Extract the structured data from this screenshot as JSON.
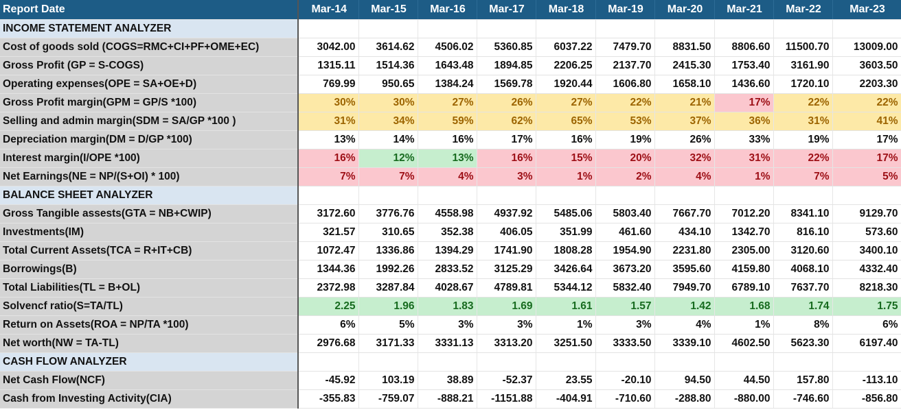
{
  "header": {
    "label": "Report Date",
    "years": [
      "Mar-14",
      "Mar-15",
      "Mar-16",
      "Mar-17",
      "Mar-18",
      "Mar-19",
      "Mar-20",
      "Mar-21",
      "Mar-22",
      "Mar-23"
    ]
  },
  "rows": [
    {
      "type": "section",
      "label": "INCOME STATEMENT ANALYZER"
    },
    {
      "label": "Cost of goods sold (COGS=RMC+CI+PF+OME+EC)",
      "values": [
        "3042.00",
        "3614.62",
        "4506.02",
        "5360.85",
        "6037.22",
        "7479.70",
        "8831.50",
        "8806.60",
        "11500.70",
        "13009.00"
      ],
      "styles": [
        "",
        "",
        "",
        "",
        "",
        "",
        "",
        "",
        "",
        ""
      ]
    },
    {
      "label": "Gross Profit (GP = S-COGS)",
      "values": [
        "1315.11",
        "1514.36",
        "1643.48",
        "1894.85",
        "2206.25",
        "2137.70",
        "2415.30",
        "1753.40",
        "3161.90",
        "3603.50"
      ],
      "styles": [
        "",
        "",
        "",
        "",
        "",
        "",
        "",
        "",
        "",
        ""
      ]
    },
    {
      "label": "Operating expenses(OPE = SA+OE+D)",
      "values": [
        "769.99",
        "950.65",
        "1384.24",
        "1569.78",
        "1920.44",
        "1606.80",
        "1658.10",
        "1436.60",
        "1720.10",
        "2203.30"
      ],
      "styles": [
        "",
        "",
        "",
        "",
        "",
        "",
        "",
        "",
        "",
        ""
      ]
    },
    {
      "label": "Gross Profit margin(GPM = GP/S *100)",
      "values": [
        "30%",
        "30%",
        "27%",
        "26%",
        "27%",
        "22%",
        "21%",
        "17%",
        "22%",
        "22%"
      ],
      "styles": [
        "yellow",
        "yellow",
        "yellow",
        "yellow",
        "yellow",
        "yellow",
        "yellow",
        "red",
        "yellow",
        "yellow"
      ]
    },
    {
      "label": "Selling and admin margin(SDM = SA/GP *100 )",
      "values": [
        "31%",
        "34%",
        "59%",
        "62%",
        "65%",
        "53%",
        "37%",
        "36%",
        "31%",
        "41%"
      ],
      "styles": [
        "yellow",
        "yellow",
        "yellow",
        "yellow",
        "yellow",
        "yellow",
        "yellow",
        "yellow",
        "yellow",
        "yellow"
      ]
    },
    {
      "label": "Depreciation margin(DM = D/GP *100)",
      "values": [
        "13%",
        "14%",
        "16%",
        "17%",
        "16%",
        "19%",
        "26%",
        "33%",
        "19%",
        "17%"
      ],
      "styles": [
        "",
        "",
        "",
        "",
        "",
        "",
        "",
        "",
        "",
        ""
      ]
    },
    {
      "label": "Interest  margin(I/OPE *100)",
      "values": [
        "16%",
        "12%",
        "13%",
        "16%",
        "15%",
        "20%",
        "32%",
        "31%",
        "22%",
        "17%"
      ],
      "styles": [
        "red",
        "green",
        "green",
        "red",
        "red",
        "red",
        "red",
        "red",
        "red",
        "red"
      ]
    },
    {
      "label": "Net Earnings(NE = NP/(S+OI) * 100)",
      "values": [
        "7%",
        "7%",
        "4%",
        "3%",
        "1%",
        "2%",
        "4%",
        "1%",
        "7%",
        "5%"
      ],
      "styles": [
        "red",
        "red",
        "red",
        "red",
        "red",
        "red",
        "red",
        "red",
        "red",
        "red"
      ]
    },
    {
      "type": "section",
      "label": "BALANCE SHEET ANALYZER"
    },
    {
      "label": " Gross Tangible assests(GTA = NB+CWIP)",
      "values": [
        "3172.60",
        "3776.76",
        "4558.98",
        "4937.92",
        "5485.06",
        "5803.40",
        "7667.70",
        "7012.20",
        "8341.10",
        "9129.70"
      ],
      "styles": [
        "",
        "",
        "",
        "",
        "",
        "",
        "",
        "",
        "",
        ""
      ]
    },
    {
      "label": "Investments(IM)",
      "values": [
        "321.57",
        "310.65",
        "352.38",
        "406.05",
        "351.99",
        "461.60",
        "434.10",
        "1342.70",
        "816.10",
        "573.60"
      ],
      "styles": [
        "",
        "",
        "",
        "",
        "",
        "",
        "",
        "",
        "",
        ""
      ]
    },
    {
      "label": "Total Current Assets(TCA = R+IT+CB)",
      "values": [
        "1072.47",
        "1336.86",
        "1394.29",
        "1741.90",
        "1808.28",
        "1954.90",
        "2231.80",
        "2305.00",
        "3120.60",
        "3400.10"
      ],
      "styles": [
        "",
        "",
        "",
        "",
        "",
        "",
        "",
        "",
        "",
        ""
      ]
    },
    {
      "label": "Borrowings(B)",
      "values": [
        "1344.36",
        "1992.26",
        "2833.52",
        "3125.29",
        "3426.64",
        "3673.20",
        "3595.60",
        "4159.80",
        "4068.10",
        "4332.40"
      ],
      "styles": [
        "",
        "",
        "",
        "",
        "",
        "",
        "",
        "",
        "",
        ""
      ]
    },
    {
      "label": "Total Liabilities(TL = B+OL)",
      "values": [
        "2372.98",
        "3287.84",
        "4028.67",
        "4789.81",
        "5344.12",
        "5832.40",
        "7949.70",
        "6789.10",
        "7637.70",
        "8218.30"
      ],
      "styles": [
        "",
        "",
        "",
        "",
        "",
        "",
        "",
        "",
        "",
        ""
      ]
    },
    {
      "label": "Solvencf ratio(S=TA/TL)",
      "values": [
        "2.25",
        "1.96",
        "1.83",
        "1.69",
        "1.61",
        "1.57",
        "1.42",
        "1.68",
        "1.74",
        "1.75"
      ],
      "styles": [
        "green",
        "green",
        "green",
        "green",
        "green",
        "green",
        "green",
        "green",
        "green",
        "green"
      ]
    },
    {
      "label": "Return on Assets(ROA = NP/TA *100)",
      "values": [
        "6%",
        "5%",
        "3%",
        "3%",
        "1%",
        "3%",
        "4%",
        "1%",
        "8%",
        "6%"
      ],
      "styles": [
        "",
        "",
        "",
        "",
        "",
        "",
        "",
        "",
        "",
        ""
      ]
    },
    {
      "label": "Net worth(NW = TA-TL)",
      "values": [
        "2976.68",
        "3171.33",
        "3331.13",
        "3313.20",
        "3251.50",
        "3333.50",
        "3339.10",
        "4602.50",
        "5623.30",
        "6197.40"
      ],
      "styles": [
        "",
        "",
        "",
        "",
        "",
        "",
        "",
        "",
        "",
        ""
      ]
    },
    {
      "type": "section",
      "label": "CASH FLOW ANALYZER"
    },
    {
      "label": "Net Cash Flow(NCF)",
      "values": [
        "-45.92",
        "103.19",
        "38.89",
        "-52.37",
        "23.55",
        "-20.10",
        "94.50",
        "44.50",
        "157.80",
        "-113.10"
      ],
      "styles": [
        "",
        "",
        "",
        "",
        "",
        "",
        "",
        "",
        "",
        ""
      ]
    },
    {
      "label": "Cash from Investing Activity(CIA)",
      "values": [
        "-355.83",
        "-759.07",
        "-888.21",
        "-1151.88",
        "-404.91",
        "-710.60",
        "-288.80",
        "-880.00",
        "-746.60",
        "-856.80"
      ],
      "styles": [
        "",
        "",
        "",
        "",
        "",
        "",
        "",
        "",
        "",
        ""
      ]
    }
  ]
}
